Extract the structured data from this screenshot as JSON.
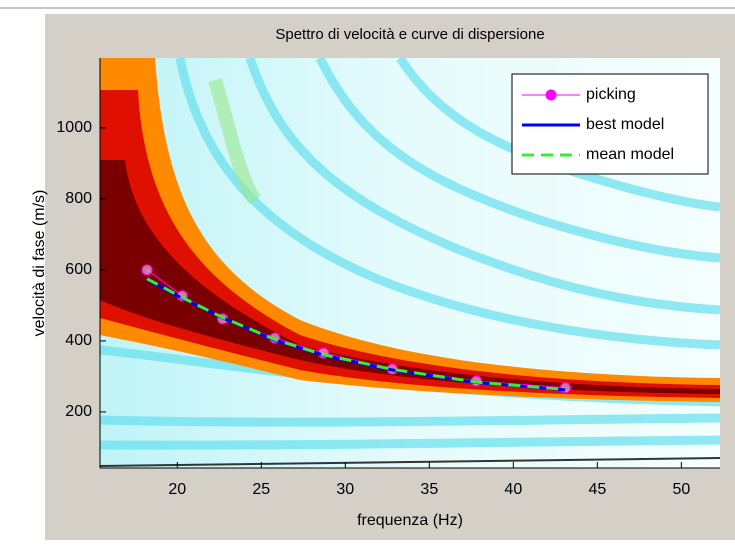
{
  "chart_data": {
    "type": "line",
    "title": "Spettro di velocità e curve di dispersione",
    "xlabel": "frequenza (Hz)",
    "ylabel": "velocità di fase (m/s)",
    "xlim": [
      15.4,
      52.3
    ],
    "xticks": [
      20,
      25,
      30,
      35,
      40,
      45,
      50
    ],
    "ylim": [
      42,
      1197
    ],
    "yticks": [
      200,
      400,
      600,
      800,
      1000
    ],
    "legend": "top-right",
    "series": [
      {
        "name": "picking",
        "color": "#ff00ff",
        "marker": "o",
        "linestyle": "solid",
        "x": [
          18.2,
          20.3,
          22.7,
          25.8,
          28.7,
          32.8,
          37.8,
          43.1
        ],
        "values": [
          600,
          527,
          462,
          408,
          366,
          321,
          287,
          268
        ]
      },
      {
        "name": "best model",
        "color": "#0000ff",
        "marker": "none",
        "linestyle": "solid",
        "x": [
          18.2,
          20.3,
          22.7,
          25.8,
          28.7,
          32.8,
          37.8,
          43.1
        ],
        "values": [
          572,
          520,
          465,
          402,
          360,
          318,
          283,
          262
        ]
      },
      {
        "name": "mean model",
        "color": "#33ee33",
        "marker": "none",
        "linestyle": "dashed",
        "x": [
          18.2,
          20.3,
          22.7,
          25.8,
          28.7,
          32.8,
          37.8,
          43.1
        ],
        "values": [
          575,
          522,
          466,
          404,
          361,
          320,
          284,
          263
        ]
      }
    ]
  }
}
